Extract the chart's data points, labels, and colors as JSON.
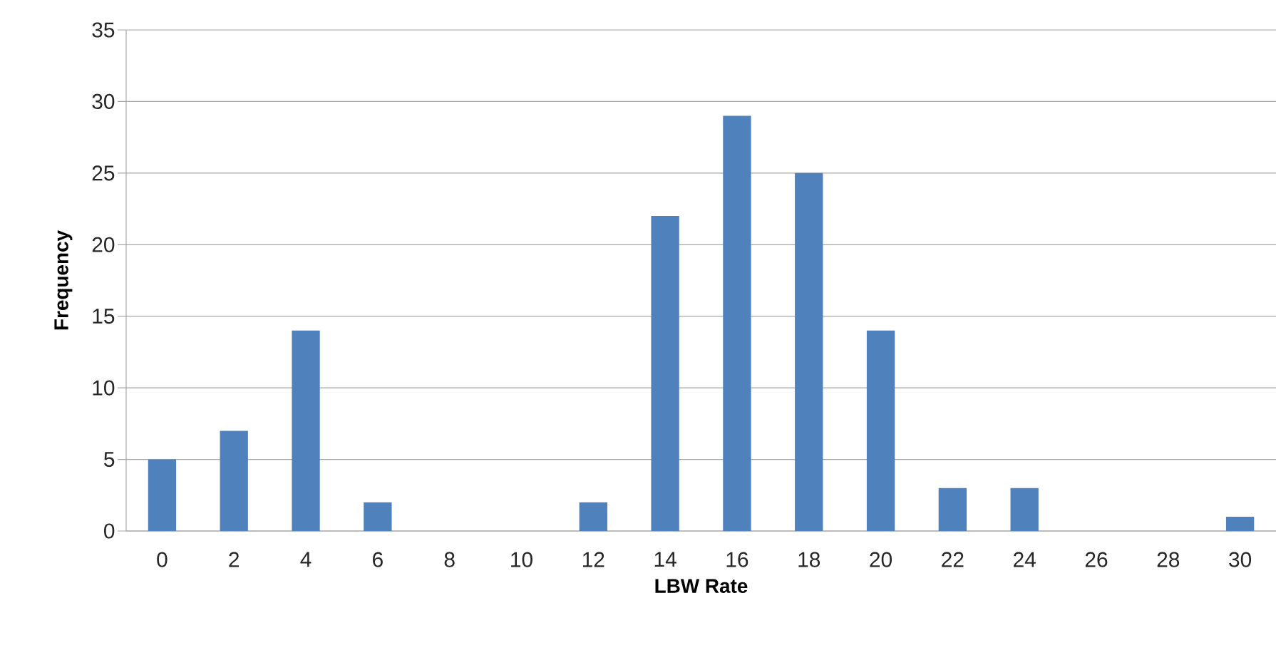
{
  "chart_data": {
    "type": "bar",
    "xlabel": "LBW Rate",
    "ylabel": "Frequency",
    "categories": [
      "0",
      "2",
      "4",
      "6",
      "8",
      "10",
      "12",
      "14",
      "16",
      "18",
      "20",
      "22",
      "24",
      "26",
      "28",
      "30"
    ],
    "values": [
      5,
      7,
      14,
      2,
      0,
      0,
      2,
      22,
      29,
      25,
      14,
      3,
      3,
      0,
      0,
      1
    ],
    "color": "#4f81bd",
    "ylim": [
      0,
      35
    ],
    "yticks": [
      0,
      5,
      10,
      15,
      20,
      25,
      30,
      35
    ],
    "grid": "y"
  }
}
